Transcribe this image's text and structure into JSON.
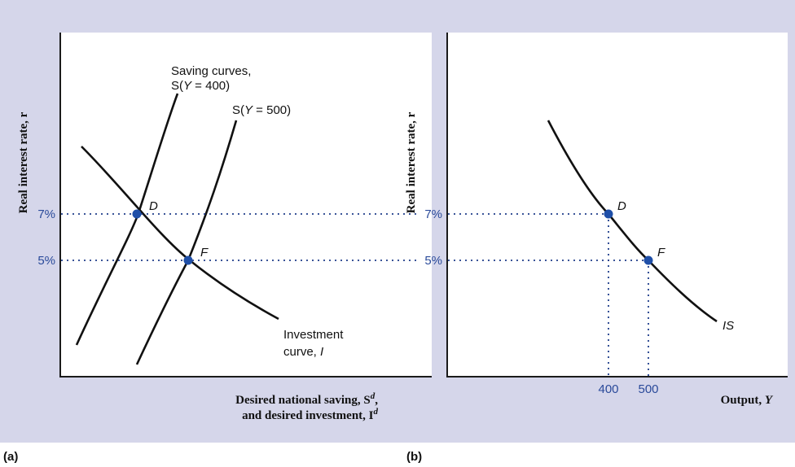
{
  "chart_data": [
    {
      "panel_label": "(a)",
      "type": "line",
      "ylabel": "Real interest rate, r",
      "xlabel_line1": "Desired national saving, S",
      "xlabel_line1_sup": "d",
      "xlabel_line1_end": ",",
      "xlabel_line2": "and desired investment, I",
      "xlabel_line2_sup": "d",
      "yticks": [
        {
          "label": "7%",
          "value": 7
        },
        {
          "label": "5%",
          "value": 5
        }
      ],
      "series": [
        {
          "name": "S(Y = 400)",
          "label_prefix": "Saving curves,",
          "label_S": "S(",
          "label_Y": "Y",
          "label_rest": " = 400)"
        },
        {
          "name": "S(Y = 500)",
          "label_S": "S(",
          "label_Y": "Y",
          "label_rest": " = 500)"
        },
        {
          "name": "Investment curve, I",
          "label_line1": "Investment",
          "label_line2": "curve, ",
          "label_italic": "I"
        }
      ],
      "points": [
        {
          "label": "D",
          "r": 7
        },
        {
          "label": "F",
          "r": 5
        }
      ]
    },
    {
      "panel_label": "(b)",
      "type": "line",
      "ylabel": "Real interest rate, r",
      "xlabel": "Output, ",
      "xlabel_italic": "Y",
      "yticks": [
        {
          "label": "7%",
          "value": 7
        },
        {
          "label": "5%",
          "value": 5
        }
      ],
      "xticks": [
        {
          "label": "400",
          "value": 400
        },
        {
          "label": "500",
          "value": 500
        }
      ],
      "series": [
        {
          "name": "IS"
        }
      ],
      "points": [
        {
          "label": "D",
          "x": 400,
          "r": 7
        },
        {
          "label": "F",
          "x": 500,
          "r": 5
        }
      ]
    }
  ],
  "colors": {
    "curve": "#111111",
    "point": "#1f4fa8",
    "dotted": "#1f3d8a",
    "tick_text": "#2a4a9a",
    "background": "#d5d6ea"
  }
}
